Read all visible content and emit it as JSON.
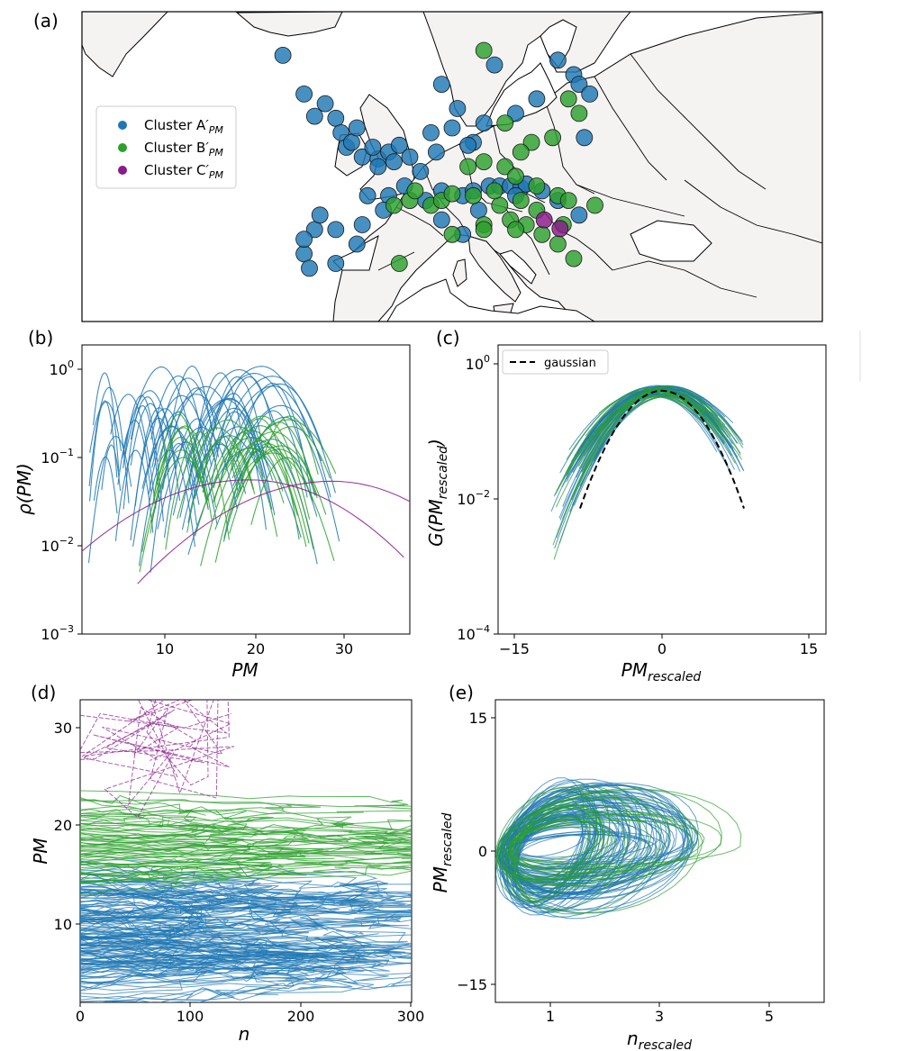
{
  "figure": {
    "panels": [
      "(a)",
      "(b)",
      "(c)",
      "(d)",
      "(e)"
    ]
  },
  "colors": {
    "cluster_A": "#1f77b4",
    "cluster_B": "#2ca02c",
    "cluster_C": "#8b1a8b",
    "land": "#f5f2f2",
    "gaussian": "#000000"
  },
  "chart_data": [
    {
      "id": "a",
      "type": "scatter",
      "description": "station map",
      "legend": {
        "placement": "left",
        "entries": [
          {
            "name": "Cluster A'PM",
            "base": "Cluster A",
            "sub": "PM",
            "color": "#1f77b4"
          },
          {
            "name": "Cluster B'PM",
            "base": "Cluster B",
            "sub": "PM",
            "color": "#2ca02c"
          },
          {
            "name": "Cluster C'PM",
            "base": "Cluster C",
            "sub": "PM",
            "color": "#8b1a8b"
          }
        ]
      },
      "stations": {
        "A": [
          [
            -6,
            61.5
          ],
          [
            -4,
            57.5
          ],
          [
            -2,
            56.5
          ],
          [
            -1,
            55
          ],
          [
            -0.5,
            53.5
          ],
          [
            0,
            52
          ],
          [
            1.5,
            51
          ],
          [
            3,
            50.8
          ],
          [
            4,
            51.5
          ],
          [
            5,
            52.2
          ],
          [
            4.5,
            50.5
          ],
          [
            6,
            51
          ],
          [
            7,
            49.5
          ],
          [
            5.5,
            48
          ],
          [
            4,
            47
          ],
          [
            2,
            47
          ],
          [
            3.5,
            45.5
          ],
          [
            1.5,
            44
          ],
          [
            -1,
            43.5
          ],
          [
            -3,
            43.5
          ],
          [
            -4,
            41
          ],
          [
            1,
            42
          ],
          [
            -1,
            40
          ],
          [
            -3.5,
            39.5
          ],
          [
            7.5,
            46.5
          ],
          [
            9,
            47.5
          ],
          [
            11,
            47
          ],
          [
            12,
            47.5
          ],
          [
            13.5,
            48
          ],
          [
            14.5,
            48
          ],
          [
            15.5,
            48
          ],
          [
            16.5,
            47.8
          ],
          [
            17,
            48.2
          ],
          [
            12.5,
            45.5
          ],
          [
            11,
            43
          ],
          [
            9,
            44.5
          ],
          [
            8.5,
            51.5
          ],
          [
            8,
            53.5
          ],
          [
            10,
            54
          ],
          [
            12,
            52.5
          ],
          [
            13,
            54.5
          ],
          [
            16,
            55.5
          ],
          [
            18,
            57
          ],
          [
            21.5,
            59.5
          ],
          [
            22,
            58.5
          ],
          [
            23,
            57.5
          ],
          [
            22.5,
            53
          ],
          [
            10.5,
            56
          ],
          [
            9,
            58.5
          ],
          [
            14,
            60.5
          ],
          [
            20,
            61
          ],
          [
            -3,
            55.2
          ],
          [
            0.5,
            52.5
          ],
          [
            2.5,
            52
          ],
          [
            16,
            47
          ],
          [
            18.5,
            47.5
          ],
          [
            20,
            46.5
          ],
          [
            22,
            45
          ],
          [
            -4,
            42.5
          ],
          [
            -2.5,
            45
          ],
          [
            3,
            50
          ],
          [
            1,
            54
          ],
          [
            11.5,
            52.2
          ]
        ],
        "B": [
          [
            13,
            62
          ],
          [
            21,
            57
          ],
          [
            22,
            55.5
          ],
          [
            15,
            54.5
          ],
          [
            19.5,
            53
          ],
          [
            17.5,
            52.5
          ],
          [
            16.5,
            51.5
          ],
          [
            11.5,
            50
          ],
          [
            13,
            50.5
          ],
          [
            15,
            50
          ],
          [
            16,
            49
          ],
          [
            18,
            48
          ],
          [
            20,
            47
          ],
          [
            21,
            46.5
          ],
          [
            23.5,
            46
          ],
          [
            16.5,
            46.5
          ],
          [
            14.5,
            46
          ],
          [
            15.5,
            44.5
          ],
          [
            17,
            44
          ],
          [
            18.5,
            43
          ],
          [
            20,
            42
          ],
          [
            21.5,
            40.5
          ],
          [
            13,
            44
          ],
          [
            10,
            43
          ],
          [
            8,
            46
          ],
          [
            6,
            46.5
          ],
          [
            6.5,
            47.5
          ],
          [
            4.5,
            46
          ],
          [
            9,
            46.5
          ],
          [
            12,
            47
          ],
          [
            14,
            47.5
          ],
          [
            10,
            47.2
          ],
          [
            20.5,
            44
          ],
          [
            5,
            40
          ],
          [
            13,
            43.5
          ],
          [
            16,
            43.5
          ],
          [
            18,
            45.5
          ]
        ],
        "C": [
          [
            18.7,
            44.5
          ],
          [
            20.2,
            43.6
          ]
        ]
      }
    },
    {
      "id": "b",
      "type": "line",
      "xlabel": "PM",
      "ylabel": "ρ(PM)",
      "xticks": [
        "10",
        "20",
        "30"
      ],
      "yticks": [
        {
          "base": "10",
          "exp": "0"
        },
        {
          "base": "10",
          "exp": "−1"
        },
        {
          "base": "10",
          "exp": "−2"
        },
        {
          "base": "10",
          "exp": "−3"
        }
      ],
      "xlim": [
        0.5,
        36.5
      ],
      "ylim": [
        0.001,
        1.6
      ],
      "yscale": "log",
      "series_groups": [
        {
          "cluster": "A",
          "count": 60,
          "peak_x_range": [
            3,
            23
          ],
          "peak_y_range": [
            0.1,
            1.1
          ]
        },
        {
          "cluster": "B",
          "count": 30,
          "peak_x_range": [
            11,
            24
          ],
          "peak_y_range": [
            0.1,
            0.31
          ]
        },
        {
          "cluster": "C",
          "count": 2,
          "peak_x_range": [
            15,
            30
          ],
          "peak_y_range": [
            0.033,
            0.06
          ]
        }
      ]
    },
    {
      "id": "c",
      "type": "line",
      "xlabel": "PMrescaled",
      "xlabel_base": "PM",
      "xlabel_sub": "rescaled",
      "ylabel_base": "G(PM",
      "ylabel_sub": "rescaled",
      "ylabel_end": ")",
      "xticks": [
        "−15",
        "0",
        "15"
      ],
      "yticks": [
        {
          "base": "10",
          "exp": "0"
        },
        {
          "base": "10",
          "exp": "−2"
        },
        {
          "base": "10",
          "exp": "−4"
        }
      ],
      "xlim": [
        -17,
        17
      ],
      "ylim": [
        0.0001,
        1.6
      ],
      "yscale": "log",
      "legend": {
        "placement": "top-left",
        "entries": [
          {
            "name": "gaussian",
            "style": "dashed",
            "color": "#000000"
          }
        ]
      },
      "gaussian": {
        "x_range": [
          -8.5,
          8.5
        ],
        "peak": 0.4
      }
    },
    {
      "id": "d",
      "type": "line",
      "xlabel": "n",
      "ylabel": "PM",
      "xticks": [
        "0",
        "100",
        "200",
        "300"
      ],
      "yticks": [
        "10",
        "20",
        "30"
      ],
      "xlim": [
        0,
        300
      ],
      "ylim": [
        2,
        32.5
      ]
    },
    {
      "id": "e",
      "type": "line",
      "xlabel_base": "n",
      "xlabel_sub": "rescaled",
      "ylabel_base": "PM",
      "ylabel_sub": "rescaled",
      "xticks": [
        "1",
        "3",
        "5"
      ],
      "yticks": [
        "15",
        "0",
        "−15"
      ],
      "xlim": [
        0,
        6
      ],
      "ylim": [
        -17,
        17
      ]
    }
  ]
}
